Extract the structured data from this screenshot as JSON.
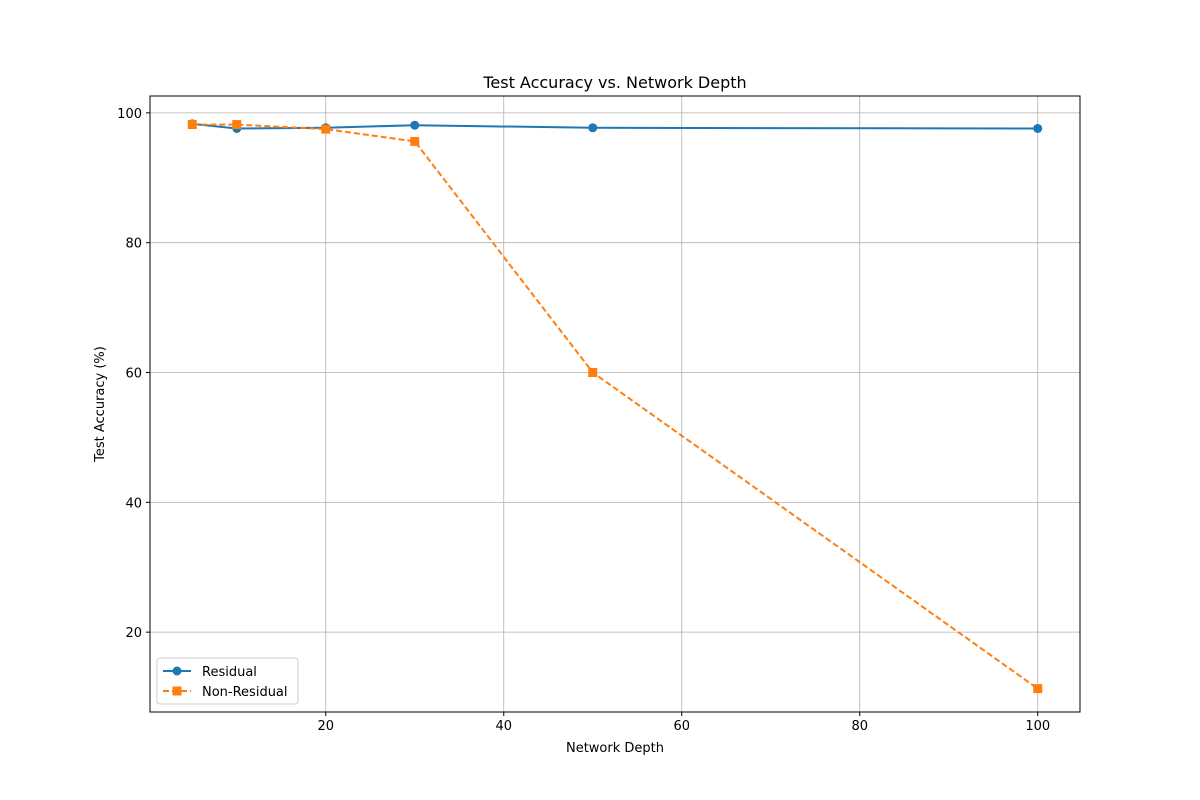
{
  "chart_data": {
    "type": "line",
    "title": "Test Accuracy vs. Network Depth",
    "xlabel": "Network Depth",
    "ylabel": "Test Accuracy (%)",
    "xlim": [
      0.25,
      104.75
    ],
    "ylim": [
      7.7,
      102.6
    ],
    "xticks": [
      20,
      40,
      60,
      80,
      100
    ],
    "yticks": [
      20,
      40,
      60,
      80,
      100
    ],
    "grid": true,
    "legend_position": "lower-left",
    "series": [
      {
        "name": "Residual",
        "color": "#1f77b4",
        "line_style": "solid",
        "marker": "circle",
        "x": [
          5,
          10,
          20,
          30,
          50,
          100
        ],
        "y": [
          98.3,
          97.6,
          97.7,
          98.1,
          97.7,
          97.6
        ]
      },
      {
        "name": "Non-Residual",
        "color": "#ff7f0e",
        "line_style": "dashed",
        "marker": "square",
        "x": [
          5,
          10,
          20,
          30,
          50,
          100
        ],
        "y": [
          98.2,
          98.2,
          97.5,
          95.6,
          60.0,
          11.3
        ]
      }
    ]
  }
}
